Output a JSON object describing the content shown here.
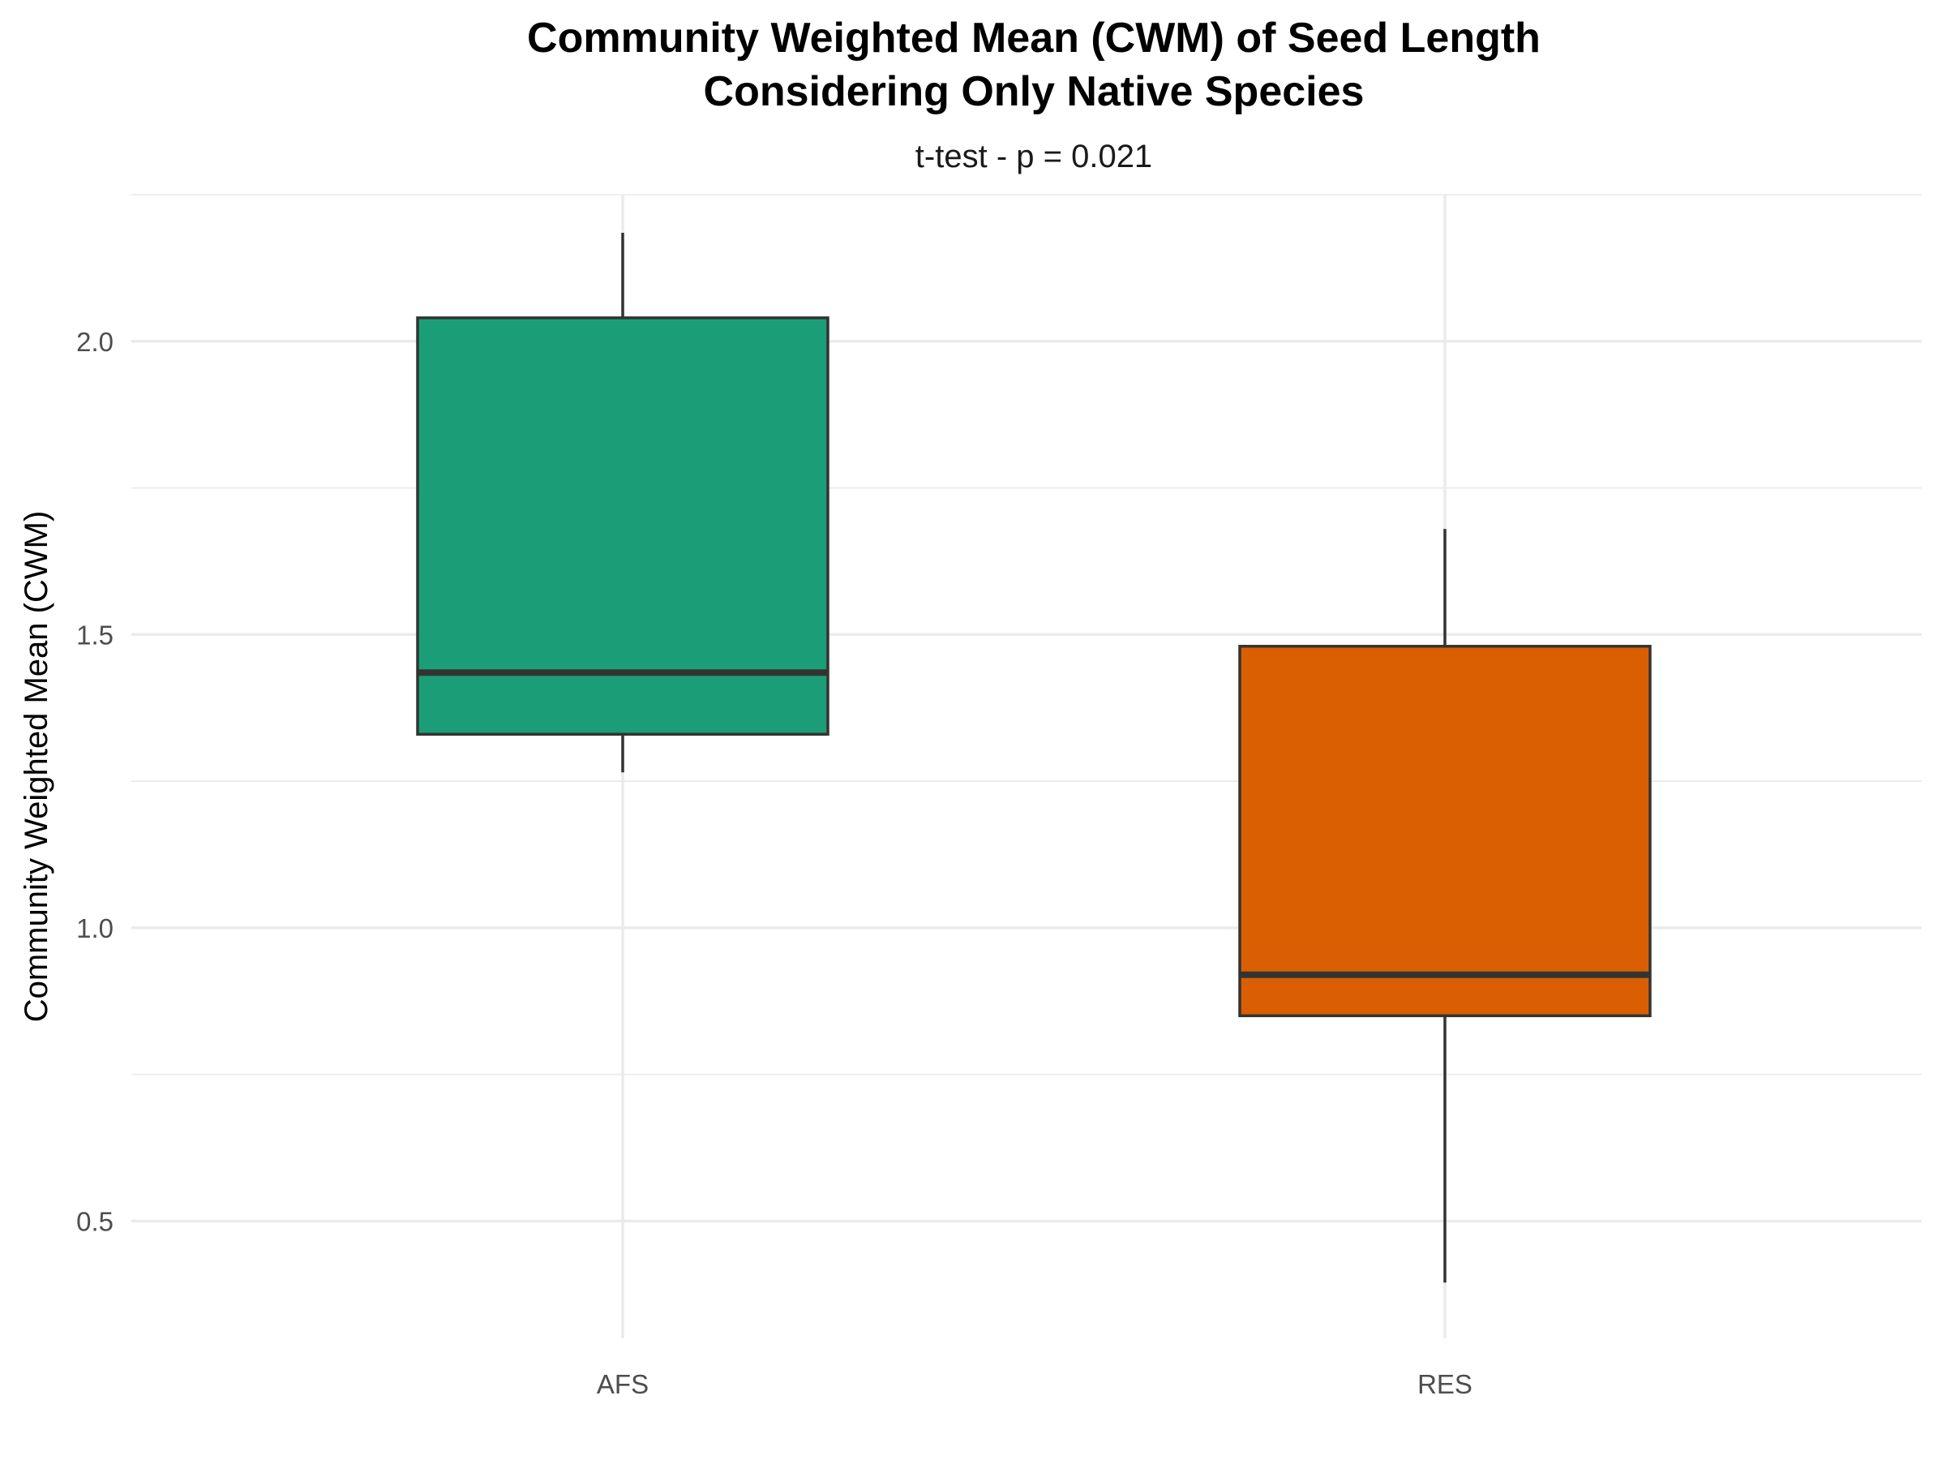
{
  "chart_data": {
    "type": "boxplot",
    "title_lines": [
      "Community Weighted Mean (CWM) of Seed Length",
      "Considering Only Native Species"
    ],
    "subtitle": "t-test - p = 0.021",
    "xlabel": "",
    "ylabel": "Community Weighted Mean (CWM)",
    "ylim": [
      0.3,
      2.25
    ],
    "y_major_ticks": [
      0.5,
      1.0,
      1.5,
      2.0
    ],
    "y_tick_labels": [
      "0.5",
      "1.0",
      "1.5",
      "2.0"
    ],
    "y_minor_ticks": [
      0.75,
      1.25,
      1.75,
      2.25
    ],
    "grid": true,
    "legend": "none",
    "categories": [
      "AFS",
      "RES"
    ],
    "boxes": [
      {
        "category": "AFS",
        "min": 1.265,
        "q1": 1.33,
        "median": 1.435,
        "q3": 2.04,
        "max": 2.185,
        "color": "#1b9e77"
      },
      {
        "category": "RES",
        "min": 0.395,
        "q1": 0.85,
        "median": 0.92,
        "q3": 1.48,
        "max": 1.68,
        "color": "#d95f02"
      }
    ]
  }
}
